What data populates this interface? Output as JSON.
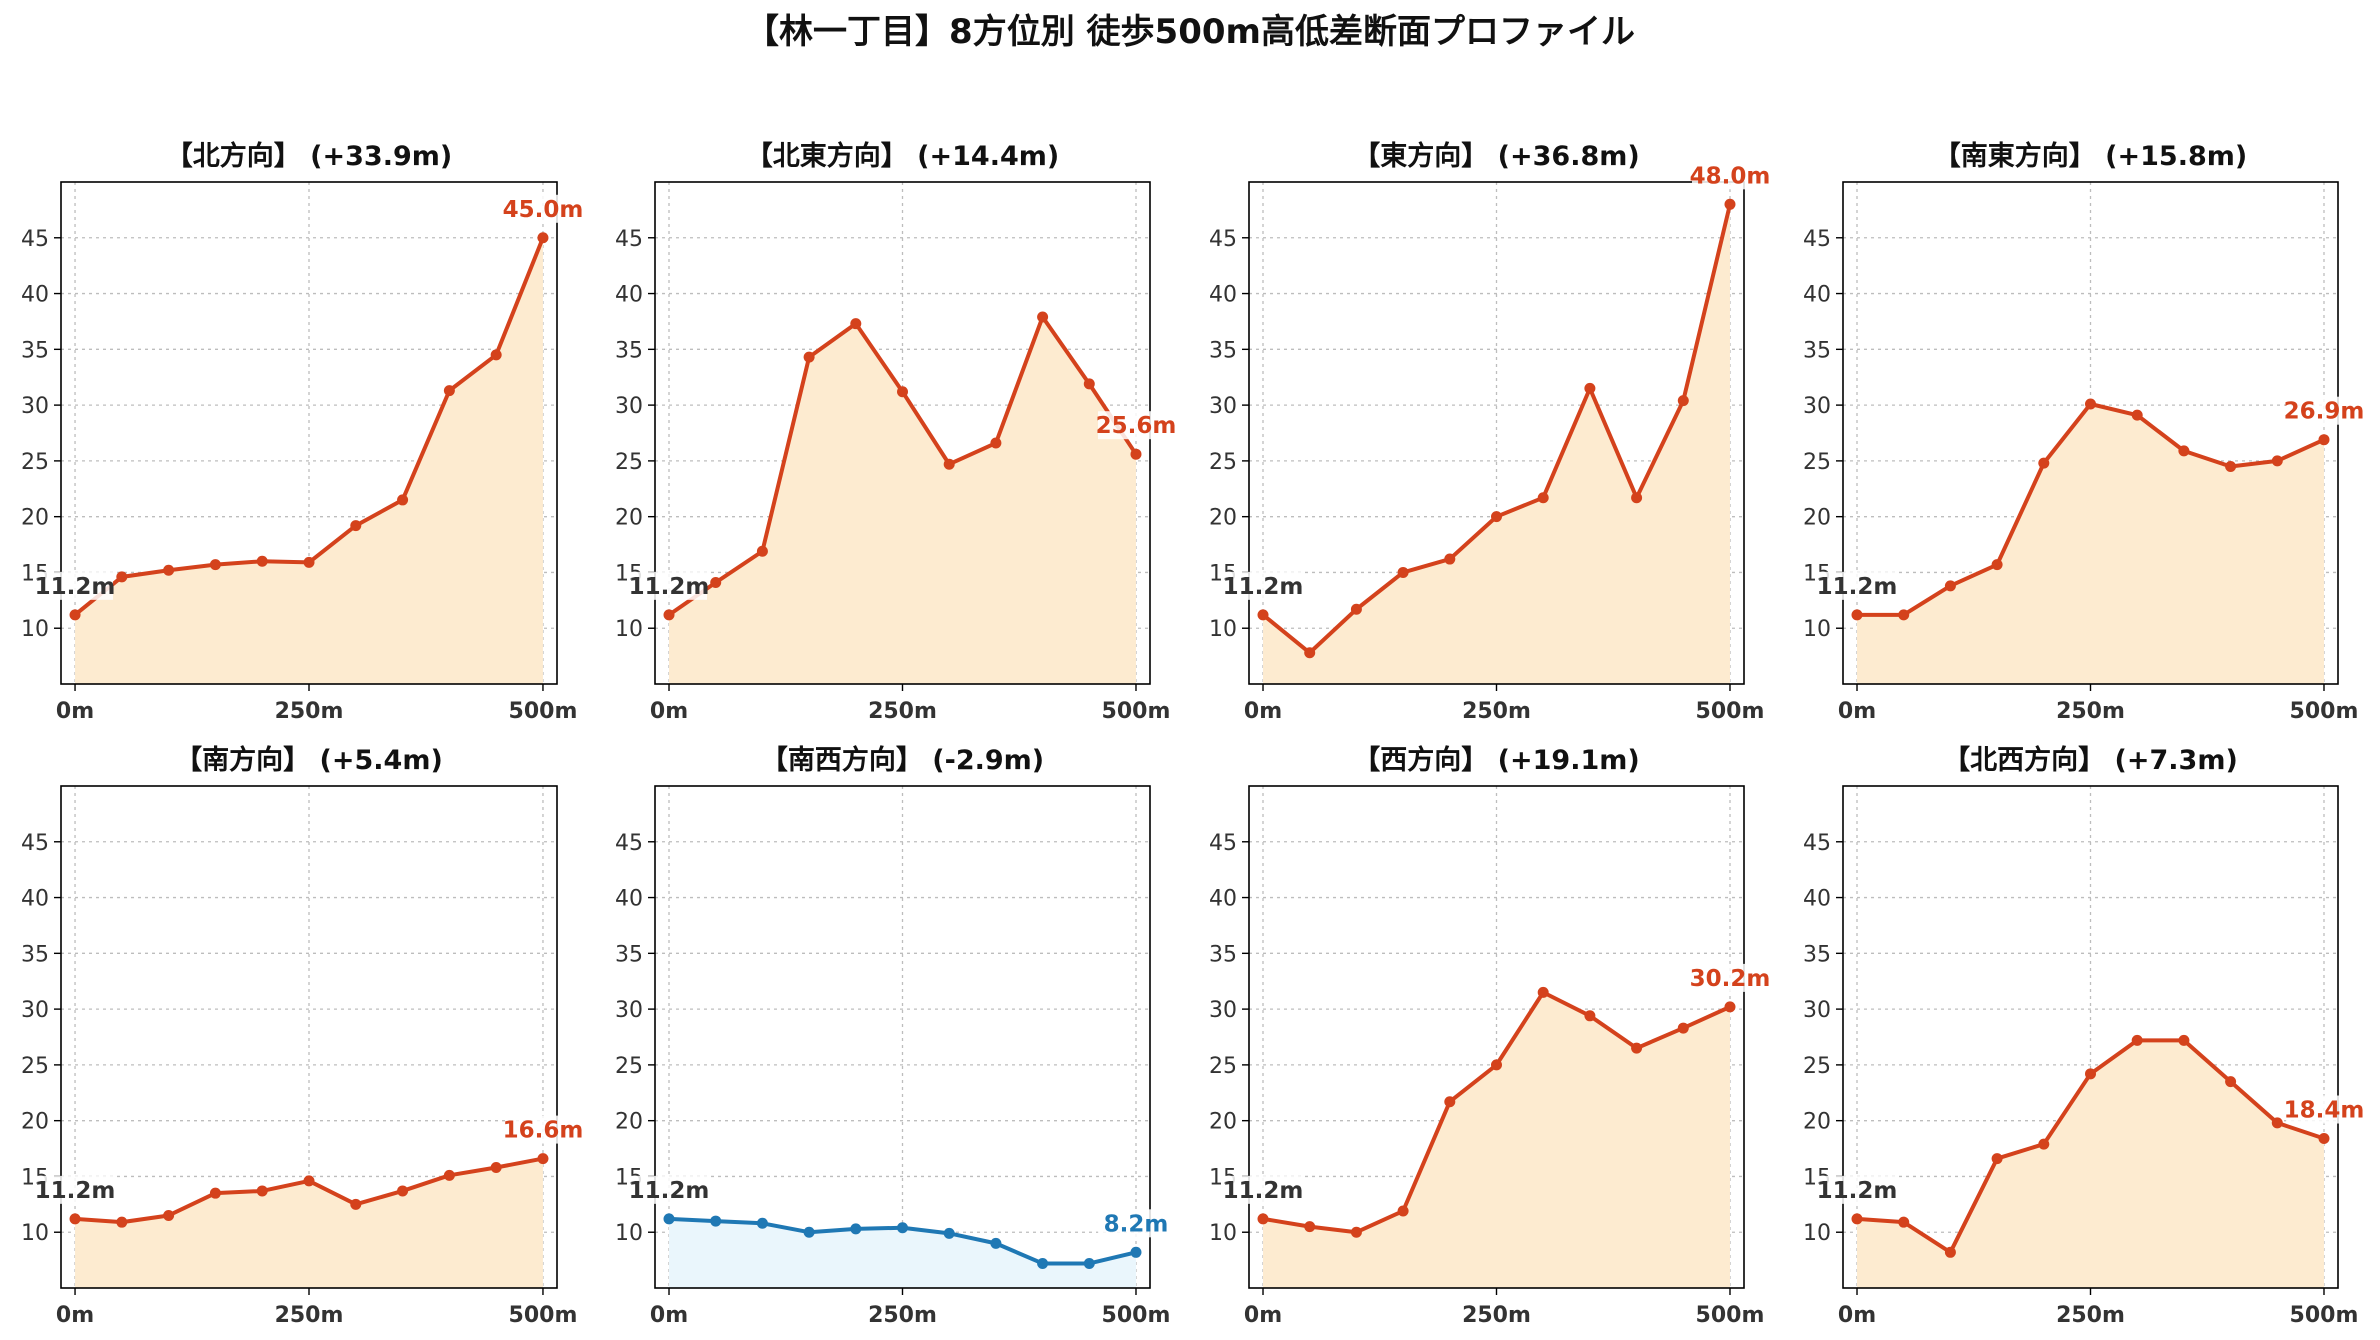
{
  "chart_data": {
    "type": "line",
    "title": "【林一丁目】8方位別 徒歩500m高低差断面プロファイル",
    "x": [
      0,
      50,
      100,
      150,
      200,
      250,
      300,
      350,
      400,
      450,
      500
    ],
    "xticks": [
      0,
      250,
      500
    ],
    "xtick_labels": [
      "0m",
      "250m",
      "500m"
    ],
    "ylim": [
      5,
      50
    ],
    "yticks": [
      10,
      15,
      20,
      25,
      30,
      35,
      40,
      45
    ],
    "xlim": [
      -15,
      515
    ],
    "grid": true,
    "colors": {
      "up_line": "#d4421c",
      "up_fill": "#fdebd0",
      "down_line": "#1f78b4",
      "down_fill": "#eaf6fc",
      "start_label": "#333333"
    },
    "panels": [
      {
        "title": "【北方向】 (+33.9m)",
        "values": [
          11.2,
          14.6,
          15.2,
          15.7,
          16.0,
          15.9,
          19.2,
          21.5,
          31.3,
          34.5,
          45.0
        ],
        "start_label": "11.2m",
        "end_label": "45.0m",
        "trend": "up"
      },
      {
        "title": "【北東方向】 (+14.4m)",
        "values": [
          11.2,
          14.1,
          16.9,
          34.3,
          37.3,
          31.2,
          24.7,
          26.6,
          37.9,
          31.9,
          25.6
        ],
        "start_label": "11.2m",
        "end_label": "25.6m",
        "trend": "up"
      },
      {
        "title": "【東方向】 (+36.8m)",
        "values": [
          11.2,
          7.8,
          11.7,
          15.0,
          16.2,
          20.0,
          21.7,
          31.5,
          21.7,
          30.4,
          48.0
        ],
        "start_label": "11.2m",
        "end_label": "48.0m",
        "trend": "up"
      },
      {
        "title": "【南東方向】 (+15.8m)",
        "values": [
          11.2,
          11.2,
          13.8,
          15.7,
          24.8,
          30.1,
          29.1,
          25.9,
          24.5,
          25.0,
          26.9
        ],
        "start_label": "11.2m",
        "end_label": "26.9m",
        "trend": "up"
      },
      {
        "title": "【南方向】 (+5.4m)",
        "values": [
          11.2,
          10.9,
          11.5,
          13.5,
          13.7,
          14.6,
          12.5,
          13.7,
          15.1,
          15.8,
          16.6
        ],
        "start_label": "11.2m",
        "end_label": "16.6m",
        "trend": "up"
      },
      {
        "title": "【南西方向】 (-2.9m)",
        "values": [
          11.2,
          11.0,
          10.8,
          10.0,
          10.3,
          10.4,
          9.9,
          9.0,
          7.2,
          7.2,
          8.2
        ],
        "start_label": "11.2m",
        "end_label": "8.2m",
        "trend": "down"
      },
      {
        "title": "【西方向】 (+19.1m)",
        "values": [
          11.2,
          10.5,
          10.0,
          11.9,
          21.7,
          25.0,
          31.5,
          29.4,
          26.5,
          28.3,
          30.2
        ],
        "start_label": "11.2m",
        "end_label": "30.2m",
        "trend": "up"
      },
      {
        "title": "【北西方向】 (+7.3m)",
        "values": [
          11.2,
          10.9,
          8.2,
          16.6,
          17.9,
          24.2,
          27.2,
          27.2,
          23.5,
          19.8,
          18.4
        ],
        "start_label": "11.2m",
        "end_label": "18.4m",
        "trend": "up"
      }
    ]
  }
}
